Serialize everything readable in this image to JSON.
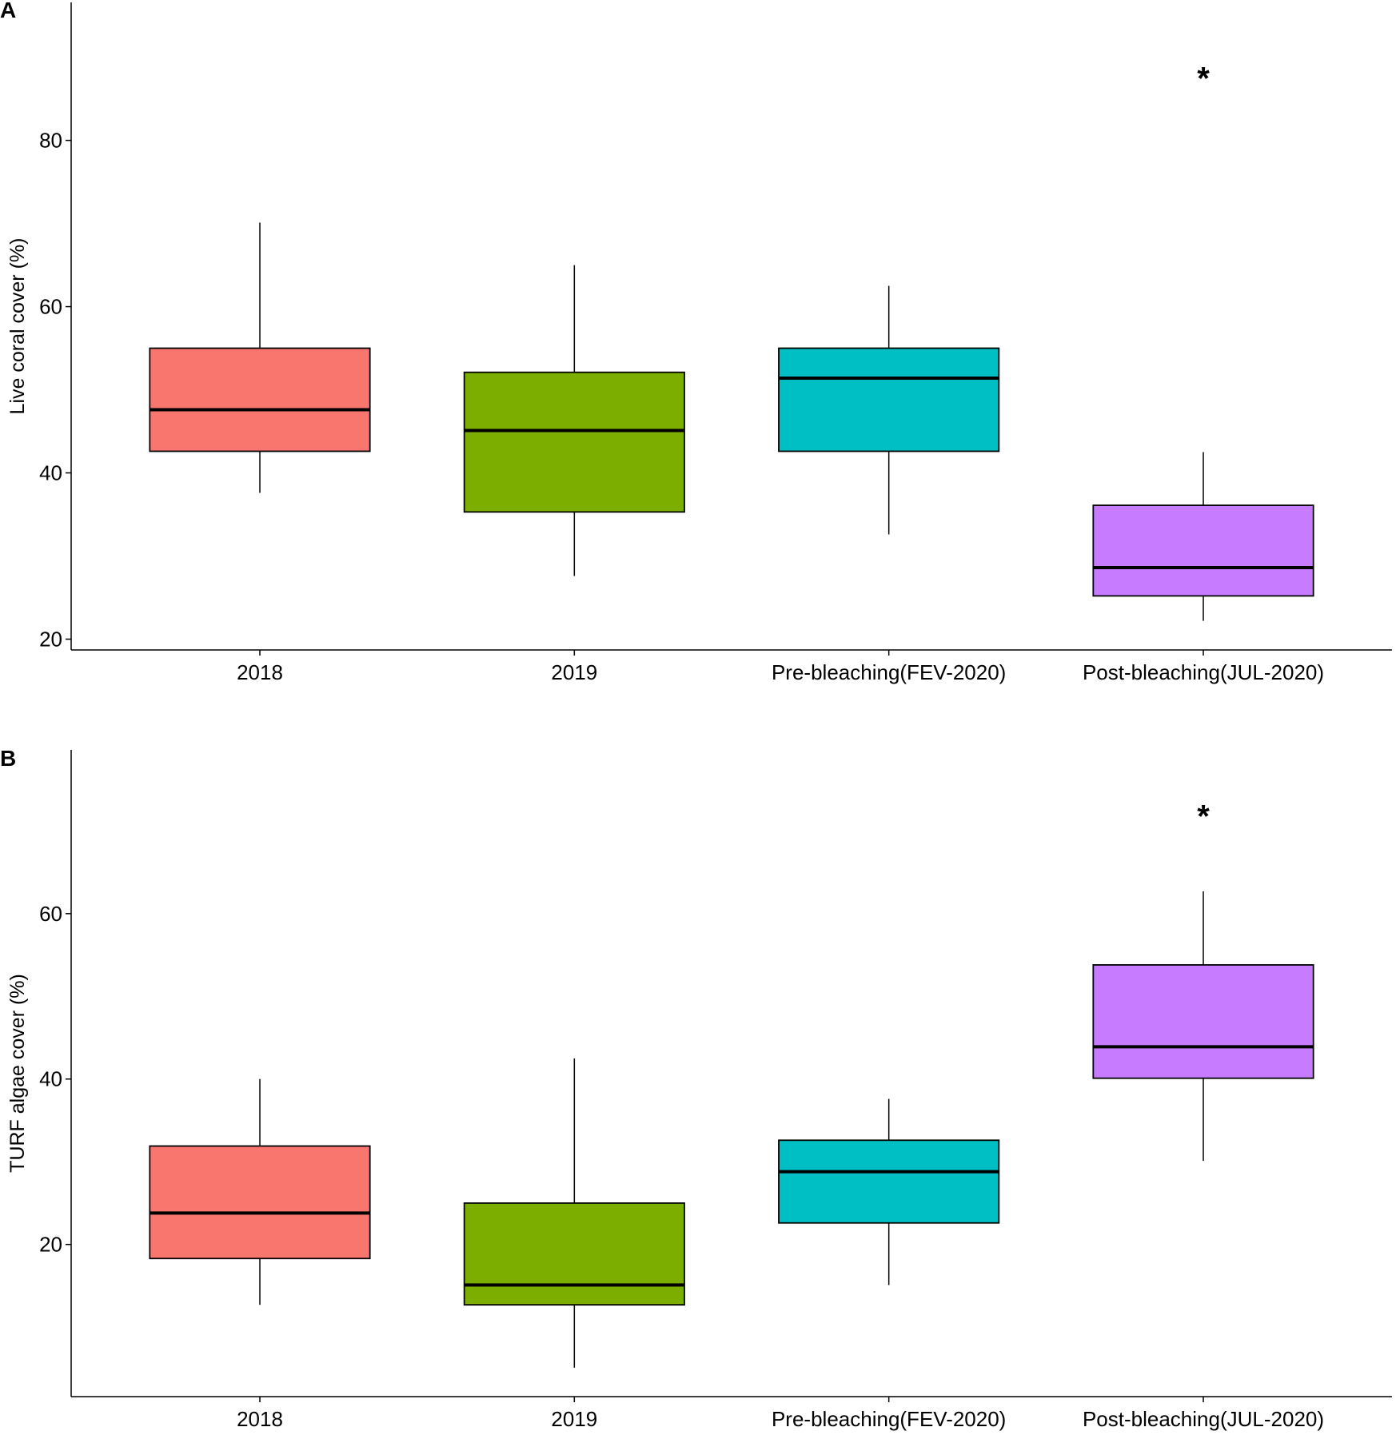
{
  "chart_data": [
    {
      "type": "box",
      "panel": "A",
      "ylabel": "Live  coral cover (%)",
      "categories": [
        "2018",
        "2019",
        "Pre-bleaching(FEV-2020)",
        "Post-bleaching(JUL-2020)"
      ],
      "colors": [
        "#f8766d",
        "#7cae00",
        "#00bfc4",
        "#c77cff"
      ],
      "whislo": [
        37.6,
        27.6,
        32.6,
        22.2
      ],
      "q1": [
        42.6,
        35.3,
        42.6,
        25.2
      ],
      "median": [
        47.6,
        45.1,
        51.4,
        28.6
      ],
      "q3": [
        55,
        52.1,
        55,
        36.1
      ],
      "whishi": [
        70.1,
        65,
        62.5,
        42.5
      ],
      "annotation": {
        "text": "*",
        "x": "Post-bleaching(JUL-2020)",
        "y": 88.3
      },
      "ylim": [
        18.7,
        96.6
      ],
      "yticks": [
        20,
        40,
        60,
        80
      ]
    },
    {
      "type": "box",
      "panel": "B",
      "ylabel": "TURF algae cover (%)",
      "categories": [
        "2018",
        "2019",
        "Pre-bleaching(FEV-2020)",
        "Post-bleaching(JUL-2020)"
      ],
      "colors": [
        "#f8766d",
        "#7cae00",
        "#00bfc4",
        "#c77cff"
      ],
      "whislo": [
        12.7,
        5.1,
        15.1,
        30.1
      ],
      "q1": [
        18.3,
        12.7,
        22.6,
        40.1
      ],
      "median": [
        23.8,
        15.1,
        28.8,
        43.9
      ],
      "q3": [
        31.9,
        25,
        32.6,
        53.8
      ],
      "whishi": [
        40,
        42.5,
        37.6,
        62.7
      ],
      "annotation": {
        "text": "*",
        "x": "Post-bleaching(JUL-2020)",
        "y": 72.6
      },
      "ylim": [
        1.6,
        79.8
      ],
      "yticks": [
        20,
        40,
        60
      ]
    }
  ]
}
